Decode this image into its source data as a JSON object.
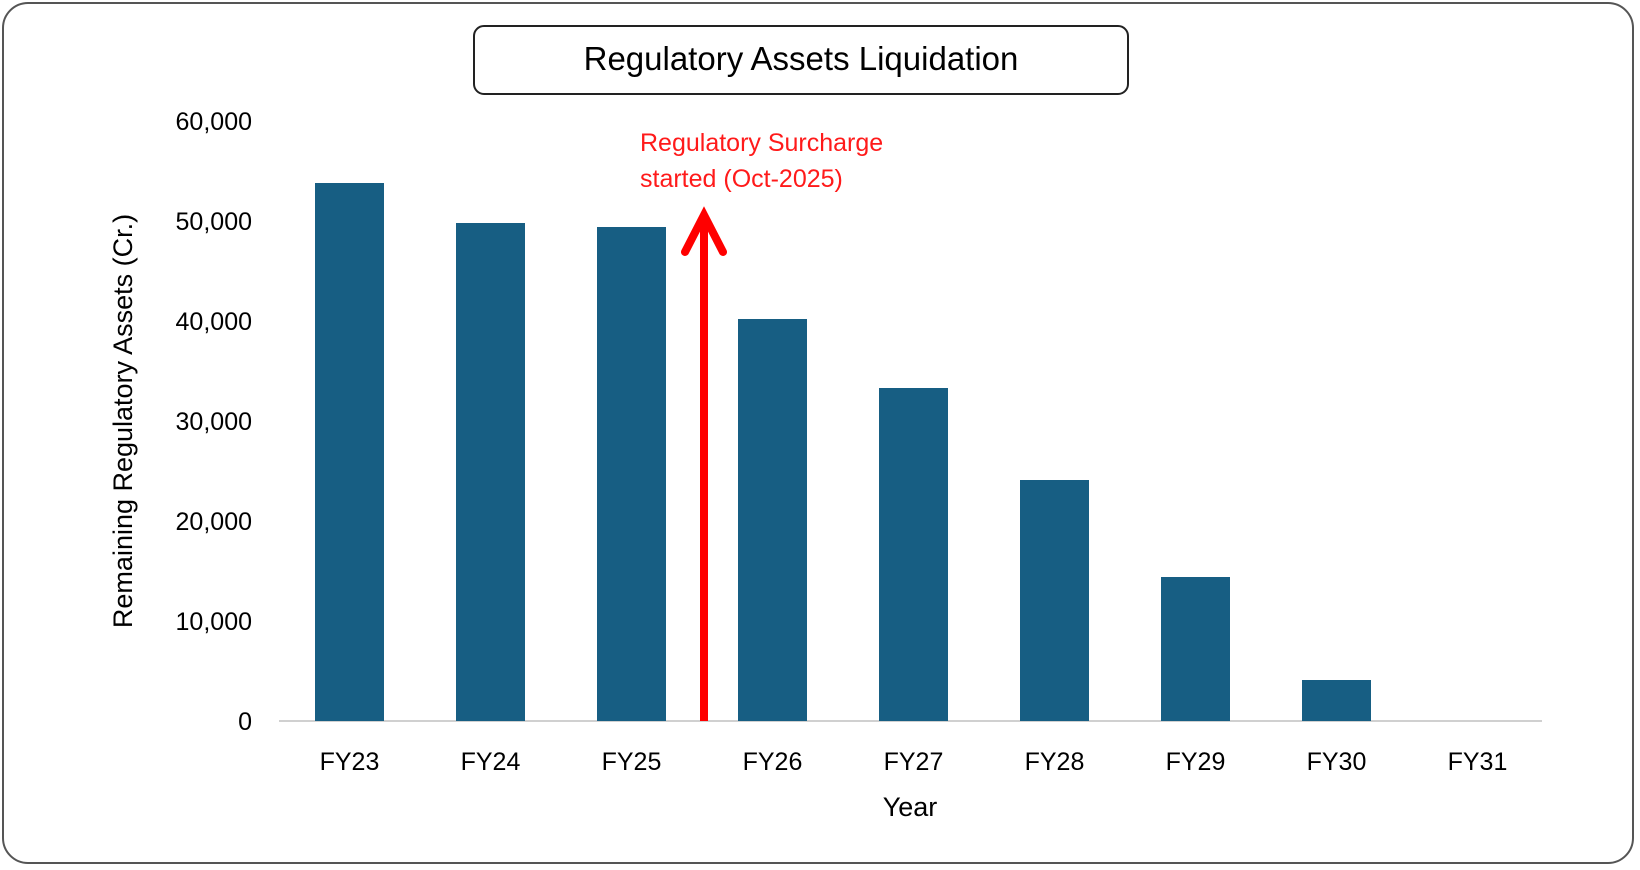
{
  "chart_data": {
    "type": "bar",
    "title": "Regulatory Assets Liquidation",
    "xlabel": "Year",
    "ylabel": "Remaining Regulatory Assets (Cr.)",
    "categories": [
      "FY23",
      "FY24",
      "FY25",
      "FY26",
      "FY27",
      "FY28",
      "FY29",
      "FY30",
      "FY31"
    ],
    "values": [
      53800,
      49800,
      49400,
      40200,
      33300,
      24100,
      14400,
      4100,
      0
    ],
    "ylim": [
      0,
      60000
    ],
    "yticks": [
      "0",
      "10,000",
      "20,000",
      "30,000",
      "40,000",
      "50,000",
      "60,000"
    ],
    "grid": false,
    "legend": "none",
    "bar_color": "#175e83",
    "annotation": {
      "lines": [
        "Regulatory Surcharge",
        "started (Oct-2025)"
      ],
      "color": "#ff0000",
      "between_categories": [
        "FY25",
        "FY26"
      ]
    }
  }
}
